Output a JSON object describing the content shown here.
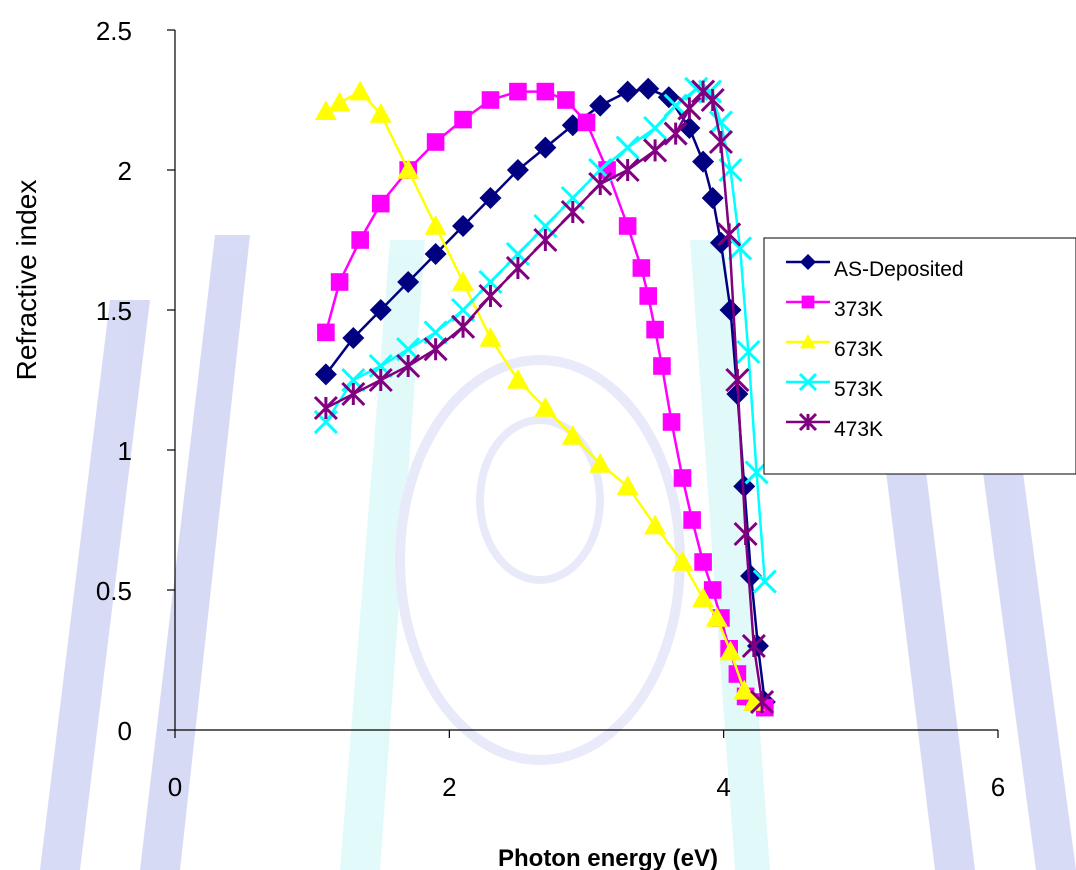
{
  "chart_data": {
    "type": "line",
    "title": "",
    "xlabel": "Photon energy (eV)",
    "ylabel": "Refractive index",
    "xlim": [
      0,
      6
    ],
    "ylim": [
      0,
      2.5
    ],
    "xticks": [
      "0",
      "2",
      "4",
      "6"
    ],
    "yticks": [
      "0",
      "0.5",
      "1",
      "1.5",
      "2",
      "2.5"
    ],
    "grid": false,
    "legend_position": "right",
    "series": [
      {
        "name": "AS-Deposited",
        "color": "#000080",
        "marker": "diamond",
        "x": [
          1.1,
          1.3,
          1.5,
          1.7,
          1.9,
          2.1,
          2.3,
          2.5,
          2.7,
          2.9,
          3.1,
          3.3,
          3.45,
          3.6,
          3.75,
          3.85,
          3.92,
          3.98,
          4.05,
          4.1,
          4.15,
          4.2,
          4.25,
          4.3
        ],
        "y": [
          1.27,
          1.4,
          1.5,
          1.6,
          1.7,
          1.8,
          1.9,
          2.0,
          2.08,
          2.16,
          2.23,
          2.28,
          2.29,
          2.26,
          2.15,
          2.03,
          1.9,
          1.74,
          1.5,
          1.2,
          0.87,
          0.55,
          0.3,
          0.1
        ]
      },
      {
        "name": "373K",
        "color": "#FF00FF",
        "marker": "square",
        "x": [
          1.1,
          1.2,
          1.35,
          1.5,
          1.7,
          1.9,
          2.1,
          2.3,
          2.5,
          2.7,
          2.85,
          3.0,
          3.15,
          3.3,
          3.4,
          3.45,
          3.5,
          3.55,
          3.62,
          3.7,
          3.77,
          3.85,
          3.92,
          3.98,
          4.04,
          4.1,
          4.16,
          4.22,
          4.3
        ],
        "y": [
          1.42,
          1.6,
          1.75,
          1.88,
          2.0,
          2.1,
          2.18,
          2.25,
          2.28,
          2.28,
          2.25,
          2.17,
          2.0,
          1.8,
          1.65,
          1.55,
          1.43,
          1.3,
          1.1,
          0.9,
          0.75,
          0.6,
          0.5,
          0.4,
          0.29,
          0.2,
          0.12,
          0.1,
          0.08
        ]
      },
      {
        "name": "673K",
        "color": "#FFFF00",
        "marker": "triangle",
        "x": [
          1.1,
          1.2,
          1.35,
          1.5,
          1.7,
          1.9,
          2.1,
          2.3,
          2.5,
          2.7,
          2.9,
          3.1,
          3.3,
          3.5,
          3.7,
          3.85,
          3.95,
          4.05,
          4.15,
          4.22
        ],
        "y": [
          2.21,
          2.24,
          2.28,
          2.2,
          2.0,
          1.8,
          1.6,
          1.4,
          1.25,
          1.15,
          1.05,
          0.95,
          0.87,
          0.73,
          0.6,
          0.47,
          0.4,
          0.28,
          0.14,
          0.1
        ]
      },
      {
        "name": "573K",
        "color": "#00FFFF",
        "marker": "x",
        "x": [
          1.1,
          1.3,
          1.5,
          1.7,
          1.9,
          2.1,
          2.3,
          2.5,
          2.7,
          2.9,
          3.1,
          3.3,
          3.5,
          3.65,
          3.8,
          3.9,
          3.98,
          4.05,
          4.12,
          4.18,
          4.24,
          4.3
        ],
        "y": [
          1.1,
          1.25,
          1.3,
          1.36,
          1.42,
          1.5,
          1.6,
          1.7,
          1.8,
          1.9,
          2.0,
          2.08,
          2.15,
          2.23,
          2.29,
          2.28,
          2.17,
          2.0,
          1.72,
          1.35,
          0.92,
          0.53
        ]
      },
      {
        "name": "473K",
        "color": "#800080",
        "marker": "star",
        "x": [
          1.1,
          1.3,
          1.5,
          1.7,
          1.9,
          2.1,
          2.3,
          2.5,
          2.7,
          2.9,
          3.1,
          3.3,
          3.5,
          3.65,
          3.75,
          3.85,
          3.92,
          3.98,
          4.04,
          4.1,
          4.16,
          4.22,
          4.28
        ],
        "y": [
          1.15,
          1.2,
          1.25,
          1.3,
          1.36,
          1.44,
          1.55,
          1.65,
          1.75,
          1.85,
          1.95,
          2.0,
          2.07,
          2.13,
          2.22,
          2.28,
          2.25,
          2.1,
          1.77,
          1.25,
          0.7,
          0.3,
          0.1
        ]
      }
    ]
  }
}
